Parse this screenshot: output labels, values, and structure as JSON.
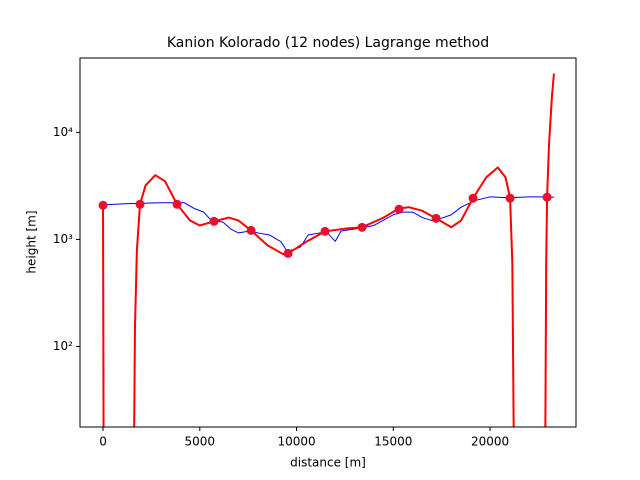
{
  "chart_data": {
    "type": "line",
    "title": "Kanion Kolorado (12 nodes) Lagrange method",
    "x_label": "distance [m]",
    "y_label": "height [m]",
    "xlim": [
      -1190,
      24440
    ],
    "ylim": [
      17.7,
      49500
    ],
    "yscale": "log",
    "xticks": [
      0,
      5000,
      10000,
      15000,
      20000
    ],
    "yticks": [
      {
        "value": 100,
        "label": "10²"
      },
      {
        "value": 1000,
        "label": "10³"
      },
      {
        "value": 10000,
        "label": "10⁴"
      }
    ],
    "series": [
      {
        "color": "#0000ff",
        "style": "line",
        "width": 1,
        "x": [
          0,
          1000,
          2000,
          3000,
          4200,
          4700,
          5200,
          5600,
          6200,
          6600,
          7000,
          7600,
          8000,
          8600,
          9200,
          9500,
          9800,
          10200,
          10600,
          11200,
          11600,
          12000,
          12300,
          13000,
          14000,
          15000,
          15500,
          16000,
          16500,
          17000,
          17500,
          18000,
          18500,
          19200,
          20000,
          21000,
          22000,
          23000,
          23300
        ],
        "values": [
          2100,
          2150,
          2180,
          2200,
          2200,
          1950,
          1800,
          1500,
          1450,
          1250,
          1150,
          1200,
          1150,
          1100,
          950,
          780,
          800,
          850,
          1100,
          1150,
          1150,
          960,
          1200,
          1250,
          1350,
          1700,
          1800,
          1800,
          1600,
          1500,
          1580,
          1700,
          2000,
          2300,
          2500,
          2450,
          2500,
          2500,
          2480
        ]
      },
      {
        "color": "#ff0000",
        "style": "line",
        "width": 2,
        "x": [
          0,
          30,
          400,
          1600,
          1650,
          1750,
          1912,
          2200,
          2700,
          3200,
          3824,
          4500,
          5000,
          5736,
          6500,
          7000,
          7649,
          8500,
          9300,
          9561,
          10500,
          11473,
          12500,
          13385,
          14500,
          15300,
          15800,
          16500,
          17209,
          18000,
          18500,
          19121,
          19800,
          20400,
          20800,
          21034,
          21150,
          21230,
          22000,
          22850,
          22900,
          22946,
          23050,
          23200,
          23300
        ],
        "values": [
          2085,
          10,
          null,
          10,
          150,
          800,
          2130,
          3200,
          3980,
          3500,
          2130,
          1500,
          1350,
          1475,
          1600,
          1500,
          1215,
          880,
          730,
          740,
          950,
          1189,
          1260,
          1297,
          1600,
          1950,
          2000,
          1850,
          1574,
          1300,
          1500,
          2427,
          3800,
          4700,
          3800,
          2427,
          600,
          10,
          null,
          10,
          600,
          2478,
          8000,
          22000,
          35400
        ]
      },
      {
        "color": "#e8112d",
        "style": "marker",
        "x": [
          0,
          1912,
          3824,
          5736,
          7649,
          9561,
          11473,
          13385,
          15297,
          17209,
          19121,
          21034,
          22946
        ],
        "values": [
          2085,
          2130,
          2130,
          1475,
          1215,
          740,
          1189,
          1297,
          1914,
          1574,
          2427,
          2427,
          2478
        ]
      }
    ]
  }
}
